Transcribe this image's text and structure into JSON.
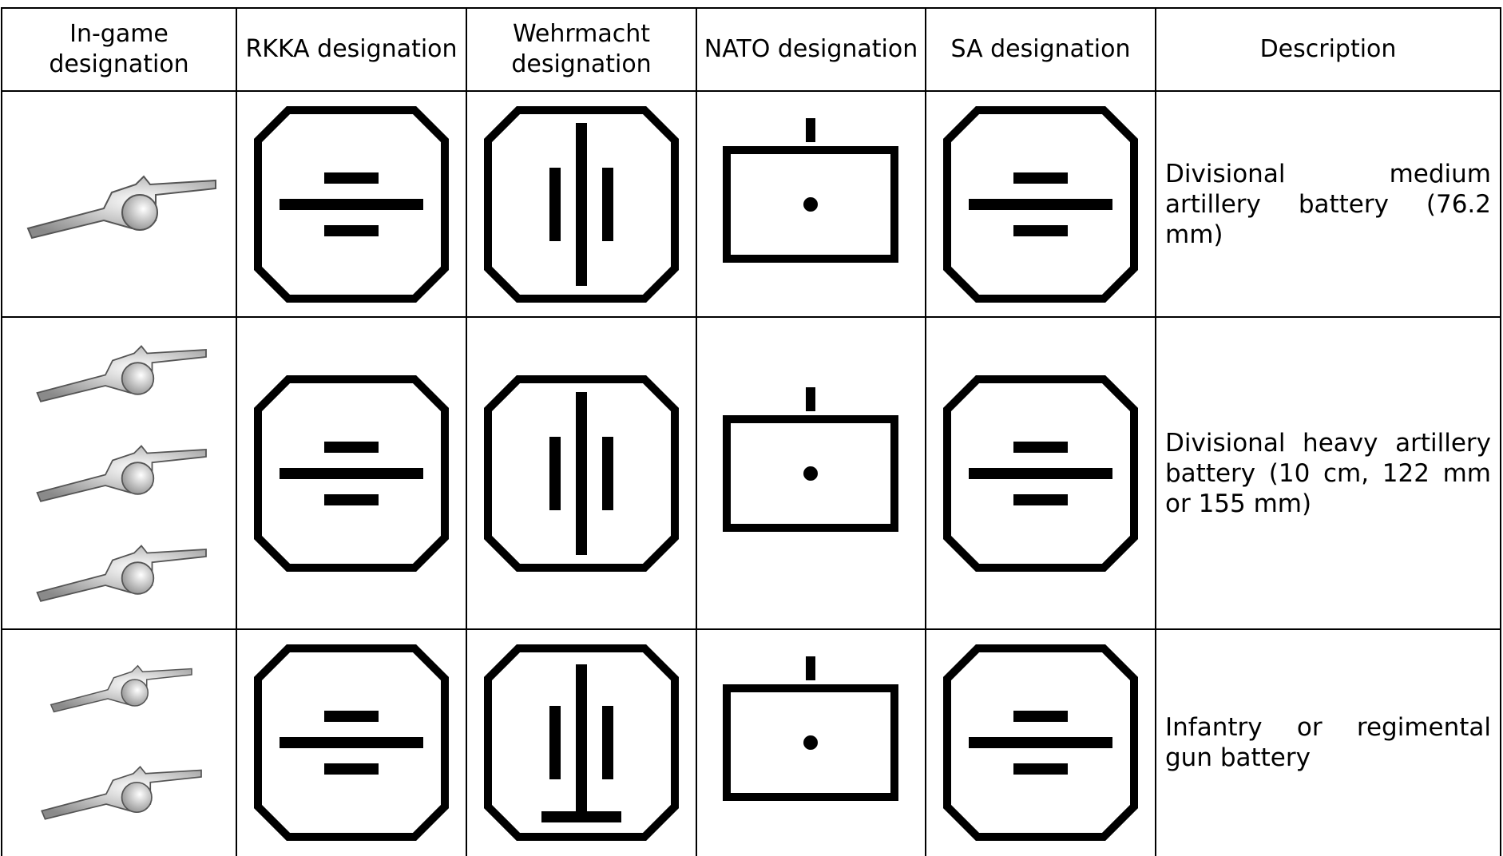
{
  "table": {
    "header": [
      "In-game designation",
      "RKKA designation",
      "Wehrmacht designation",
      "NATO designation",
      "SA designation",
      "Description"
    ],
    "rows": [
      {
        "description": "Divisional medium artillery battery (76.2 mm)"
      },
      {
        "description": "Divisional heavy artillery battery (10 cm, 122 mm or 155 mm)"
      },
      {
        "description": "Infantry or regimental gun battery"
      }
    ]
  }
}
